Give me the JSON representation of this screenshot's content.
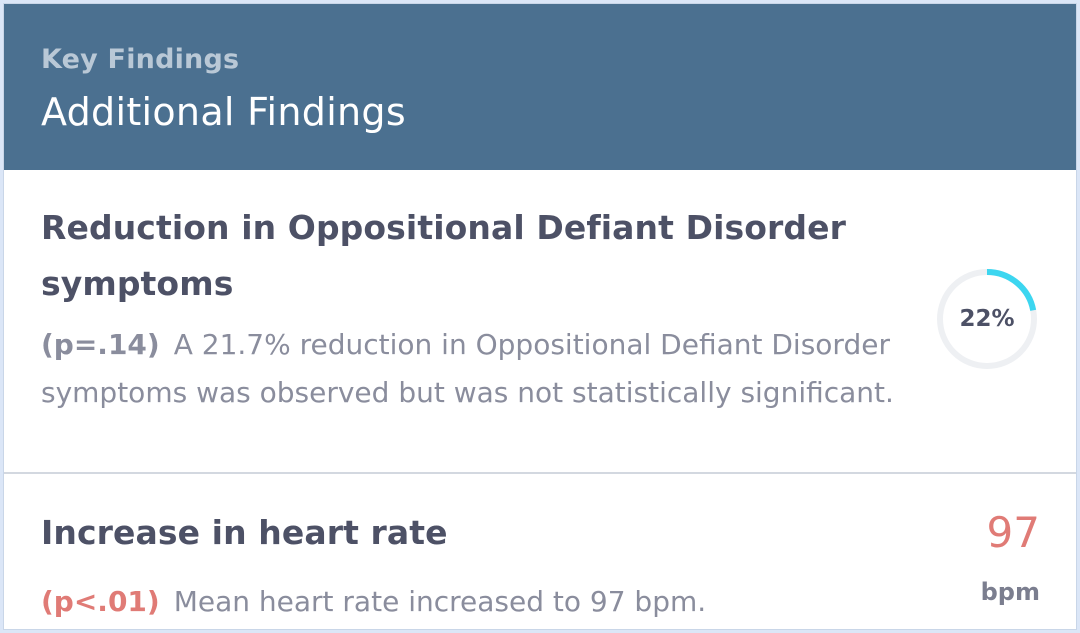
{
  "header": {
    "eyebrow": "Key Findings",
    "title": "Additional Findings"
  },
  "findings": [
    {
      "title": "Reduction in Oppositional Defiant Disorder symptoms",
      "p_value": "(p=.14)",
      "description": "A 21.7% reduction in Oppositional Defiant Disorder symptoms was observed but was not statistically significant.",
      "indicator": {
        "type": "progress-ring",
        "label": "22%",
        "value": 0.22,
        "color": "#3cd6f0",
        "track_color": "#eef0f3"
      }
    },
    {
      "title": "Increase in heart rate",
      "p_value": "(p<.01)",
      "description": "Mean heart rate increased to 97 bpm.",
      "indicator": {
        "type": "metric",
        "value": "97",
        "unit": "bpm",
        "color": "#e07b76"
      }
    }
  ],
  "colors": {
    "header_bg": "#4b7090",
    "title_text": "#4d5166",
    "body_text": "#8a8d9d",
    "significant": "#e07b76",
    "accent": "#3cd6f0"
  }
}
